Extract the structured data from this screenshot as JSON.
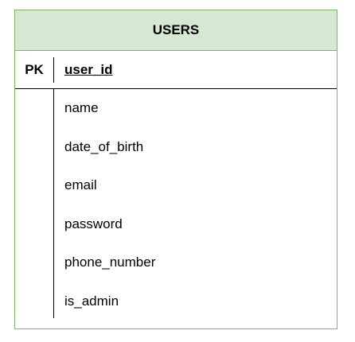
{
  "entity": {
    "title": "USERS",
    "primary_key": {
      "label": "PK",
      "name": "user_id"
    },
    "attributes": [
      "name",
      "date_of_birth",
      "email",
      "password",
      "phone_number",
      "is_admin"
    ],
    "colors": {
      "header_fill": "#d5e8d4",
      "border": "#82b366"
    }
  }
}
